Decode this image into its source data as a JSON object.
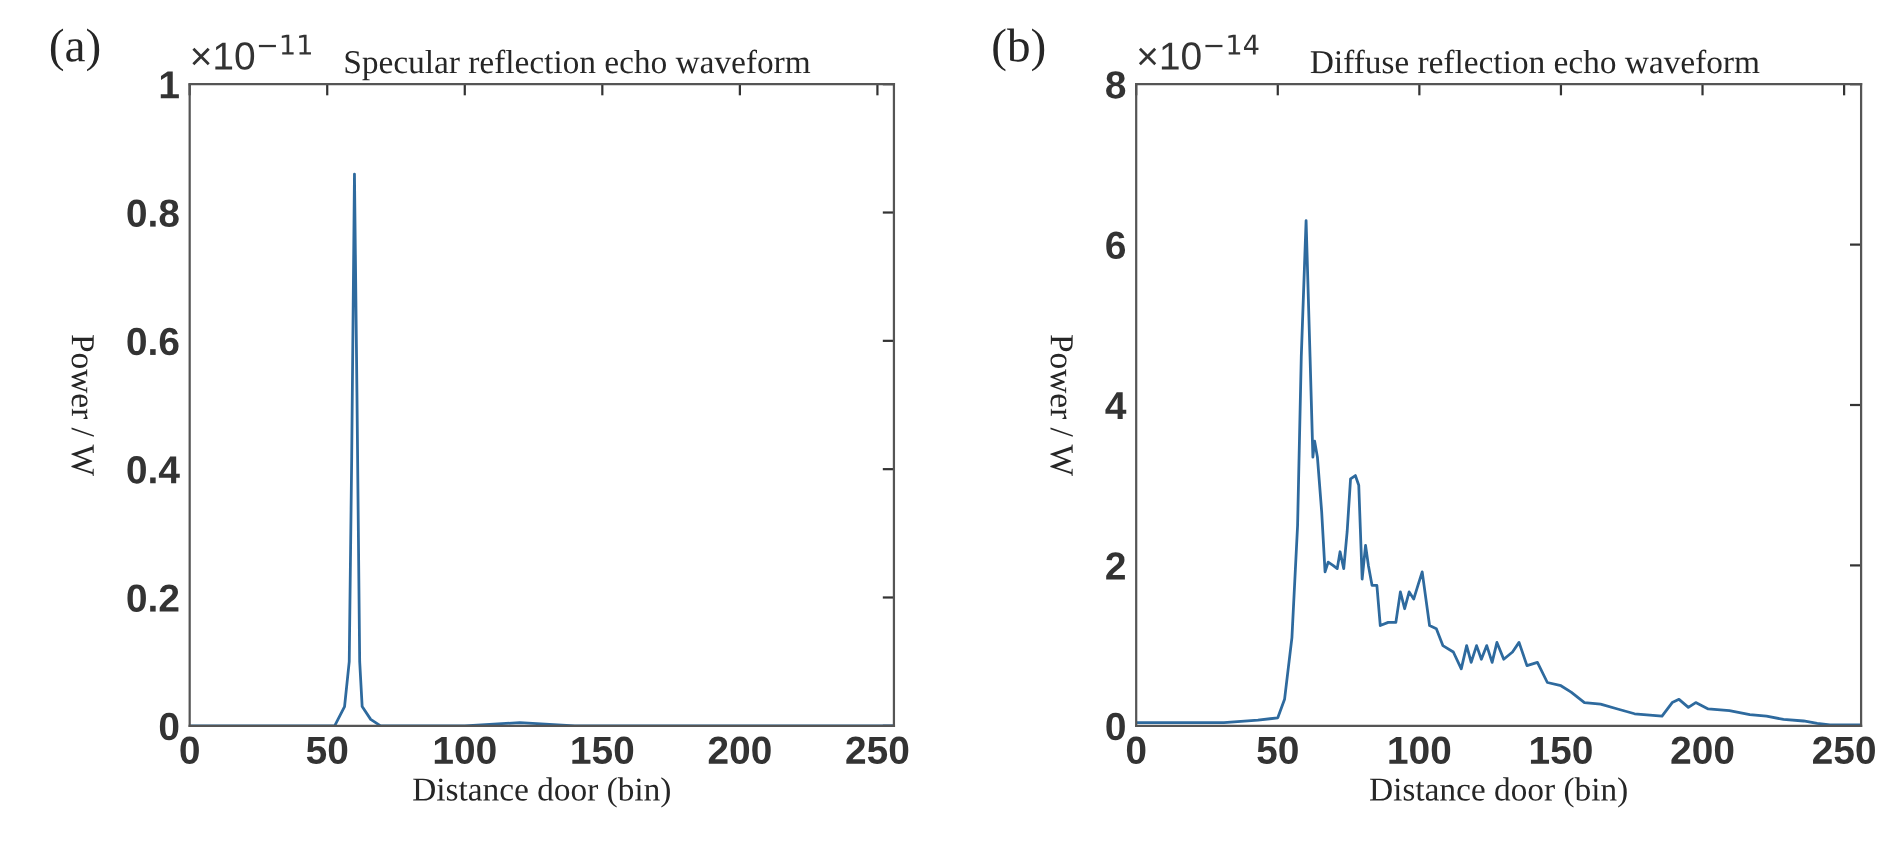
{
  "chart_data": [
    {
      "type": "line",
      "title": "Specular reflection echo waveform",
      "xlabel": "Distance door (bin)",
      "ylabel": "Power / W",
      "annotations": [
        "(a)",
        "×10$^{−11}$"
      ],
      "series": [
        {
          "color": "#2e6a9e",
          "x": [
            0,
            50,
            52.7,
            56.3,
            58,
            58.9,
            59.9,
            60.8,
            61.8,
            62.7,
            65.8,
            69.4,
            100,
            120,
            140,
            256
          ],
          "values": [
            0,
            0,
            0,
            0.03,
            0.1,
            0.42,
            0.86,
            0.52,
            0.1,
            0.03,
            0.01,
            0,
            0,
            0.005,
            0,
            0
          ]
        }
      ],
      "xlim": [
        0,
        256
      ],
      "xticks": [
        0,
        50,
        100,
        150,
        200,
        250
      ],
      "ylim": [
        0,
        1
      ],
      "yticks": [
        0,
        0.2,
        0.4,
        0.6,
        0.8,
        1
      ],
      "grid": false,
      "legend": false
    },
    {
      "type": "line",
      "title": "Diffuse reflection echo waveform",
      "xlabel": "Distance door (bin)",
      "ylabel": "Power / W",
      "annotations": [
        "(b)",
        "×10$^{−14}$"
      ],
      "series": [
        {
          "color": "#2e6a9e",
          "x": [
            0,
            31,
            43,
            50,
            52.4,
            55,
            57,
            58.3,
            60,
            61.4,
            62.4,
            63,
            64,
            65.5,
            66.7,
            67.8,
            69.5,
            71,
            72,
            73.3,
            74.5,
            75.7,
            77.4,
            78.6,
            79.8,
            81,
            82,
            83.3,
            85,
            86.2,
            89,
            91.7,
            93.3,
            94.8,
            96.4,
            98,
            99.5,
            101,
            103.6,
            106,
            108.3,
            112,
            114.8,
            116.7,
            118.3,
            120.2,
            121.9,
            123.8,
            125.7,
            127.4,
            129.8,
            132.9,
            135.2,
            138,
            141.7,
            145.2,
            150,
            153.6,
            158.3,
            164,
            170,
            176,
            185.7,
            189.3,
            191.7,
            195,
            197.6,
            202,
            209.5,
            216.7,
            222.6,
            228.6,
            235.7,
            240.5,
            245,
            256
          ],
          "values": [
            0.04,
            0.04,
            0.07,
            0.1,
            0.33,
            1.1,
            2.5,
            4.6,
            6.3,
            4.6,
            3.35,
            3.55,
            3.35,
            2.67,
            1.92,
            2.04,
            2.0,
            1.96,
            2.17,
            1.96,
            2.42,
            3.08,
            3.12,
            3.0,
            1.83,
            2.25,
            2.0,
            1.75,
            1.75,
            1.25,
            1.29,
            1.29,
            1.67,
            1.46,
            1.67,
            1.58,
            1.75,
            1.92,
            1.25,
            1.21,
            1.0,
            0.92,
            0.71,
            1.0,
            0.79,
            1.0,
            0.83,
            1.0,
            0.79,
            1.04,
            0.83,
            0.92,
            1.04,
            0.75,
            0.79,
            0.54,
            0.5,
            0.42,
            0.29,
            0.27,
            0.21,
            0.15,
            0.12,
            0.29,
            0.33,
            0.23,
            0.29,
            0.21,
            0.19,
            0.14,
            0.12,
            0.08,
            0.06,
            0.03,
            0.01,
            0.01
          ]
        }
      ],
      "xlim": [
        0,
        256
      ],
      "xticks": [
        0,
        50,
        100,
        150,
        200,
        250
      ],
      "ylim": [
        0,
        8
      ],
      "yticks": [
        0,
        2,
        4,
        6,
        8
      ],
      "grid": false,
      "legend": false
    }
  ]
}
